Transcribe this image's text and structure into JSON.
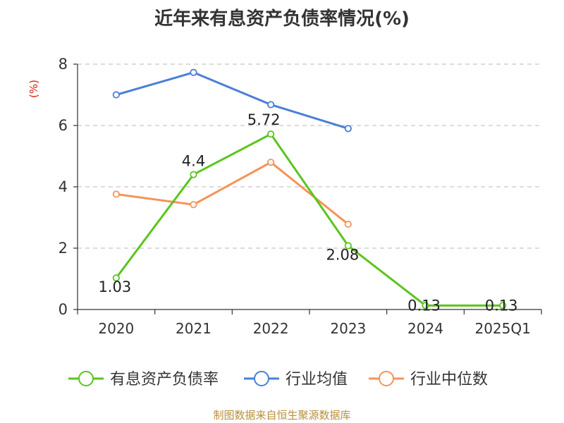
{
  "chart_data": {
    "type": "line",
    "title": "近年来有息资产负债率情况(%)",
    "ylabel": "(%)",
    "xlabel": "",
    "categories": [
      "2020",
      "2021",
      "2022",
      "2023",
      "2024",
      "2025Q1"
    ],
    "y_ticks": [
      "0",
      "2",
      "4",
      "6",
      "8"
    ],
    "ylim": [
      0,
      8
    ],
    "grid": true,
    "legend_position": "bottom",
    "series": [
      {
        "name": "有息资产负债率",
        "color": "#5bc51d",
        "values": [
          1.03,
          4.4,
          5.72,
          2.08,
          0.13,
          0.13
        ],
        "labels": [
          "1.03",
          "4.4",
          "5.72",
          "2.08",
          "0.13",
          "0.13"
        ]
      },
      {
        "name": "行业均值",
        "color": "#4a7fd8",
        "values": [
          7.0,
          7.73,
          6.68,
          5.9,
          null,
          null
        ]
      },
      {
        "name": "行业中位数",
        "color": "#f59358",
        "values": [
          3.76,
          3.42,
          4.8,
          2.78,
          null,
          null
        ]
      }
    ],
    "ylabel_color": "#d81e06"
  },
  "source": "制图数据来自恒生聚源数据库"
}
